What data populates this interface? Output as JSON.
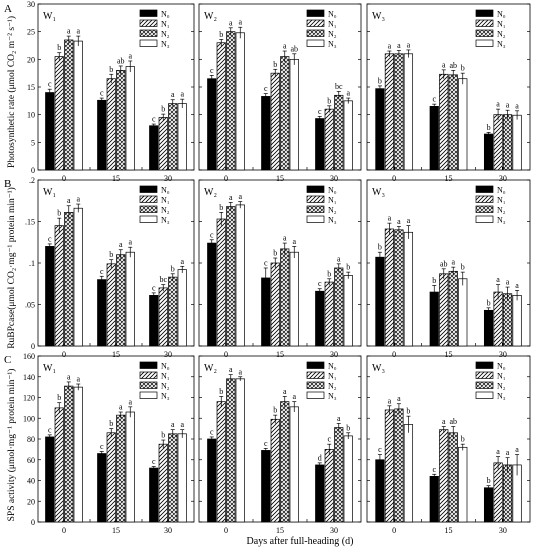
{
  "x_axis_label": "Days after full-heading (d)",
  "rows": [
    {
      "letter": "A",
      "ylabel": "Photosynthetic rate (μmol CO₂ m⁻² s⁻¹)"
    },
    {
      "letter": "B",
      "ylabel": "RuBPcase(μmol CO₂·mg⁻¹ protein min⁻¹)"
    },
    {
      "letter": "C",
      "ylabel": "SPS activity (μmol·mg⁻¹ protein min⁻¹)"
    }
  ],
  "legend": [
    "N₀",
    "N₁",
    "N₂",
    "N₃"
  ],
  "chart_data": [
    {
      "type": "bar",
      "panel": "W₁",
      "row": 0,
      "categories": [
        "0",
        "15",
        "30"
      ],
      "ylim": [
        0,
        30
      ],
      "yticks": [
        0,
        5,
        10,
        15,
        20,
        25,
        30
      ],
      "series": [
        {
          "name": "N₀",
          "values": [
            14,
            12.6,
            8
          ],
          "err": [
            0.6,
            0.4,
            0.3
          ]
        },
        {
          "name": "N₁",
          "values": [
            20.5,
            16.5,
            9.5
          ],
          "err": [
            0.7,
            0.8,
            0.6
          ]
        },
        {
          "name": "N₂",
          "values": [
            23.5,
            18,
            12
          ],
          "err": [
            0.7,
            0.8,
            0.7
          ]
        },
        {
          "name": "N₃",
          "values": [
            23.3,
            18.7,
            12
          ],
          "err": [
            0.9,
            1,
            0.8
          ]
        }
      ],
      "letters": [
        [
          "c",
          "b",
          "a",
          "a"
        ],
        [
          "c",
          "b",
          "ab",
          "a"
        ],
        [
          "c",
          "b",
          "a",
          "a"
        ]
      ]
    },
    {
      "type": "bar",
      "panel": "W₂",
      "row": 0,
      "categories": [
        "0",
        "15",
        "30"
      ],
      "ylim": [
        0,
        30
      ],
      "yticks": [
        0,
        5,
        10,
        15,
        20,
        25,
        30
      ],
      "series": [
        {
          "name": "N₀",
          "values": [
            16.5,
            13.3,
            9.3
          ],
          "err": [
            0.6,
            0.5,
            0.4
          ]
        },
        {
          "name": "N₁",
          "values": [
            23,
            17.5,
            11
          ],
          "err": [
            0.6,
            0.7,
            0.6
          ]
        },
        {
          "name": "N₂",
          "values": [
            25,
            20.5,
            13.5
          ],
          "err": [
            0.7,
            1,
            0.7
          ]
        },
        {
          "name": "N₃",
          "values": [
            24.8,
            20,
            12.5
          ],
          "err": [
            1,
            1,
            0.5
          ]
        }
      ],
      "letters": [
        [
          "c",
          "b",
          "a",
          "a"
        ],
        [
          "c",
          "b",
          "a",
          "ab"
        ],
        [
          "c",
          "b",
          "bc",
          "a"
        ]
      ]
    },
    {
      "type": "bar",
      "panel": "W₃",
      "row": 0,
      "categories": [
        "0",
        "15",
        "30"
      ],
      "ylim": [
        0,
        30
      ],
      "yticks": [
        0,
        5,
        10,
        15,
        20,
        25,
        30
      ],
      "series": [
        {
          "name": "N₀",
          "values": [
            14.7,
            11.5,
            6.5
          ],
          "err": [
            0.5,
            0.4,
            0.3
          ]
        },
        {
          "name": "N₁",
          "values": [
            21,
            17.3,
            10
          ],
          "err": [
            0.5,
            0.8,
            1
          ]
        },
        {
          "name": "N₂",
          "values": [
            21,
            17.2,
            10
          ],
          "err": [
            0.6,
            0.8,
            0.8
          ]
        },
        {
          "name": "N₃",
          "values": [
            21,
            16.5,
            9.9
          ],
          "err": [
            0.7,
            1,
            0.8
          ]
        }
      ],
      "letters": [
        [
          "b",
          "a",
          "a",
          "a"
        ],
        [
          "c",
          "a",
          "ab",
          "b"
        ],
        [
          "b",
          "a",
          "a",
          "a"
        ]
      ]
    },
    {
      "type": "bar",
      "panel": "W₁",
      "row": 1,
      "categories": [
        "0",
        "15",
        "30"
      ],
      "ylim": [
        0,
        0.2
      ],
      "yticks": [
        0,
        0.05,
        0.1,
        0.15,
        0.2
      ],
      "series": [
        {
          "name": "N₀",
          "values": [
            0.12,
            0.08,
            0.061
          ],
          "err": [
            0.003,
            0.004,
            0.003
          ]
        },
        {
          "name": "N₁",
          "values": [
            0.145,
            0.099,
            0.07
          ],
          "err": [
            0.009,
            0.005,
            0.004
          ]
        },
        {
          "name": "N₂",
          "values": [
            0.161,
            0.11,
            0.083
          ],
          "err": [
            0.008,
            0.006,
            0.004
          ]
        },
        {
          "name": "N₃",
          "values": [
            0.166,
            0.113,
            0.092
          ],
          "err": [
            0.005,
            0.006,
            0.004
          ]
        }
      ],
      "letters": [
        [
          "c",
          "b",
          "a",
          "a"
        ],
        [
          "c",
          "b",
          "a",
          "a"
        ],
        [
          "c",
          "bc",
          "b",
          "a"
        ]
      ]
    },
    {
      "type": "bar",
      "panel": "W₂",
      "row": 1,
      "categories": [
        "0",
        "15",
        "30"
      ],
      "ylim": [
        0,
        0.2
      ],
      "yticks": [
        0,
        0.05,
        0.1,
        0.15,
        0.2
      ],
      "series": [
        {
          "name": "N₀",
          "values": [
            0.124,
            0.082,
            0.066
          ],
          "err": [
            0.004,
            0.012,
            0.003
          ]
        },
        {
          "name": "N₁",
          "values": [
            0.153,
            0.1,
            0.077
          ],
          "err": [
            0.008,
            0.006,
            0.004
          ]
        },
        {
          "name": "N₂",
          "values": [
            0.168,
            0.117,
            0.094
          ],
          "err": [
            0.005,
            0.007,
            0.005
          ]
        },
        {
          "name": "N₃",
          "values": [
            0.17,
            0.113,
            0.085
          ],
          "err": [
            0.004,
            0.007,
            0.004
          ]
        }
      ],
      "letters": [
        [
          "c",
          "b",
          "a",
          "a"
        ],
        [
          "c",
          "b",
          "a",
          "a"
        ],
        [
          "c",
          "b",
          "a",
          "b"
        ]
      ]
    },
    {
      "type": "bar",
      "panel": "W₃",
      "row": 1,
      "categories": [
        "0",
        "15",
        "30"
      ],
      "ylim": [
        0,
        0.2
      ],
      "yticks": [
        0,
        0.05,
        0.1,
        0.15,
        0.2
      ],
      "series": [
        {
          "name": "N₀",
          "values": [
            0.107,
            0.065,
            0.043
          ],
          "err": [
            0.006,
            0.008,
            0.003
          ]
        },
        {
          "name": "N₁",
          "values": [
            0.141,
            0.087,
            0.065
          ],
          "err": [
            0.007,
            0.006,
            0.009
          ]
        },
        {
          "name": "N₂",
          "values": [
            0.14,
            0.09,
            0.063
          ],
          "err": [
            0.004,
            0.005,
            0.008
          ]
        },
        {
          "name": "N₃",
          "values": [
            0.137,
            0.081,
            0.061
          ],
          "err": [
            0.008,
            0.008,
            0.006
          ]
        }
      ],
      "letters": [
        [
          "b",
          "a",
          "a",
          "a"
        ],
        [
          "b",
          "ab",
          "a",
          "b"
        ],
        [
          "b",
          "a",
          "a",
          "a"
        ]
      ]
    },
    {
      "type": "bar",
      "panel": "W₁",
      "row": 2,
      "categories": [
        "0",
        "15",
        "30"
      ],
      "ylim": [
        0,
        160
      ],
      "yticks": [
        0,
        20,
        40,
        60,
        80,
        100,
        120,
        140,
        160
      ],
      "series": [
        {
          "name": "N₀",
          "values": [
            82,
            66,
            52
          ],
          "err": [
            2,
            2,
            1.5
          ]
        },
        {
          "name": "N₁",
          "values": [
            110,
            86,
            75
          ],
          "err": [
            5,
            4,
            4
          ]
        },
        {
          "name": "N₂",
          "values": [
            131,
            103,
            85
          ],
          "err": [
            4,
            3,
            4
          ]
        },
        {
          "name": "N₃",
          "values": [
            130,
            106,
            85
          ],
          "err": [
            3,
            5,
            4
          ]
        }
      ],
      "letters": [
        [
          "c",
          "b",
          "a",
          "a"
        ],
        [
          "c",
          "b",
          "a",
          "a"
        ],
        [
          "c",
          "b",
          "a",
          "a"
        ]
      ]
    },
    {
      "type": "bar",
      "panel": "W₂",
      "row": 2,
      "categories": [
        "0",
        "15",
        "30"
      ],
      "ylim": [
        0,
        160
      ],
      "yticks": [
        0,
        20,
        40,
        60,
        80,
        100,
        120,
        140,
        160
      ],
      "series": [
        {
          "name": "N₀",
          "values": [
            80,
            69,
            55
          ],
          "err": [
            2,
            2,
            2
          ]
        },
        {
          "name": "N₁",
          "values": [
            116,
            99,
            70
          ],
          "err": [
            5,
            4,
            5
          ]
        },
        {
          "name": "N₂",
          "values": [
            138,
            116,
            91
          ],
          "err": [
            4,
            5,
            4
          ]
        },
        {
          "name": "N₃",
          "values": [
            138,
            111,
            83
          ],
          "err": [
            2,
            5,
            3
          ]
        }
      ],
      "letters": [
        [
          "c",
          "b",
          "a",
          "a"
        ],
        [
          "c",
          "b",
          "a",
          "a"
        ],
        [
          "d",
          "c",
          "a",
          "b"
        ]
      ]
    },
    {
      "type": "bar",
      "panel": "W₃",
      "row": 2,
      "categories": [
        "0",
        "15",
        "30"
      ],
      "ylim": [
        0,
        160
      ],
      "yticks": [
        0,
        20,
        40,
        60,
        80,
        100,
        120,
        140,
        160
      ],
      "series": [
        {
          "name": "N₀",
          "values": [
            60,
            44,
            33
          ],
          "err": [
            5,
            2,
            2
          ]
        },
        {
          "name": "N₁",
          "values": [
            108,
            89,
            57
          ],
          "err": [
            4,
            3,
            6
          ]
        },
        {
          "name": "N₂",
          "values": [
            109,
            86,
            55
          ],
          "err": [
            5,
            6,
            7
          ]
        },
        {
          "name": "N₃",
          "values": [
            94,
            72,
            55
          ],
          "err": [
            8,
            3,
            10
          ]
        }
      ],
      "letters": [
        [
          "c",
          "a",
          "a",
          "b"
        ],
        [
          "c",
          "a",
          "ab",
          "b"
        ],
        [
          "b",
          "a",
          "a",
          "a"
        ]
      ]
    }
  ]
}
